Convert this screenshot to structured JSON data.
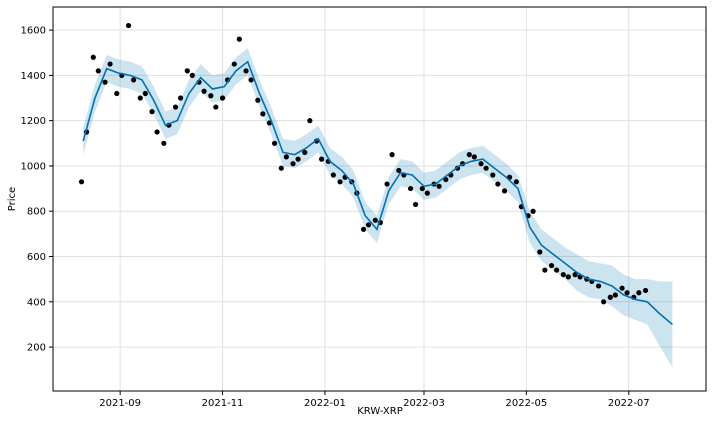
{
  "chart_data": {
    "type": "forecast",
    "xlabel": "KRW-XRP",
    "ylabel": "Price",
    "xlim": [
      "2021-07-23",
      "2022-08-16"
    ],
    "xticks": [
      "2021-09",
      "2021-11",
      "2022-01",
      "2022-03",
      "2022-05",
      "2022-07"
    ],
    "ylim": [
      6,
      1702
    ],
    "yticks": [
      200,
      400,
      600,
      800,
      1000,
      1200,
      1400,
      1600
    ],
    "grid": true,
    "actual": {
      "color": "#000000",
      "x": [
        "2021-08-09",
        "2021-08-12",
        "2021-08-16",
        "2021-08-19",
        "2021-08-23",
        "2021-08-26",
        "2021-08-30",
        "2021-09-02",
        "2021-09-06",
        "2021-09-09",
        "2021-09-13",
        "2021-09-16",
        "2021-09-20",
        "2021-09-23",
        "2021-09-27",
        "2021-09-30",
        "2021-10-04",
        "2021-10-07",
        "2021-10-11",
        "2021-10-14",
        "2021-10-18",
        "2021-10-21",
        "2021-10-25",
        "2021-10-28",
        "2021-11-01",
        "2021-11-04",
        "2021-11-08",
        "2021-11-11",
        "2021-11-15",
        "2021-11-18",
        "2021-11-22",
        "2021-11-25",
        "2021-11-29",
        "2021-12-02",
        "2021-12-06",
        "2021-12-09",
        "2021-12-13",
        "2021-12-16",
        "2021-12-20",
        "2021-12-23",
        "2021-12-27",
        "2021-12-30",
        "2022-01-03",
        "2022-01-06",
        "2022-01-10",
        "2022-01-13",
        "2022-01-17",
        "2022-01-20",
        "2022-01-24",
        "2022-01-27",
        "2022-01-31",
        "2022-02-03",
        "2022-02-07",
        "2022-02-10",
        "2022-02-14",
        "2022-02-17",
        "2022-02-21",
        "2022-02-24",
        "2022-02-28",
        "2022-03-03",
        "2022-03-07",
        "2022-03-10",
        "2022-03-14",
        "2022-03-17",
        "2022-03-21",
        "2022-03-24",
        "2022-03-28",
        "2022-03-31",
        "2022-04-04",
        "2022-04-07",
        "2022-04-11",
        "2022-04-14",
        "2022-04-18",
        "2022-04-21",
        "2022-04-25",
        "2022-04-28",
        "2022-05-02",
        "2022-05-05",
        "2022-05-09",
        "2022-05-12",
        "2022-05-16",
        "2022-05-19",
        "2022-05-23",
        "2022-05-26",
        "2022-05-30",
        "2022-06-02",
        "2022-06-06",
        "2022-06-09",
        "2022-06-13",
        "2022-06-16",
        "2022-06-20",
        "2022-06-23",
        "2022-06-27",
        "2022-06-30",
        "2022-07-04",
        "2022-07-07",
        "2022-07-11"
      ],
      "values": [
        930,
        1150,
        1480,
        1420,
        1370,
        1450,
        1320,
        1400,
        1620,
        1380,
        1300,
        1320,
        1240,
        1150,
        1100,
        1180,
        1260,
        1300,
        1420,
        1400,
        1370,
        1330,
        1310,
        1260,
        1300,
        1380,
        1450,
        1560,
        1420,
        1380,
        1290,
        1230,
        1190,
        1100,
        990,
        1040,
        1010,
        1030,
        1060,
        1200,
        1110,
        1030,
        1020,
        960,
        930,
        950,
        930,
        880,
        720,
        740,
        760,
        750,
        920,
        1050,
        980,
        960,
        900,
        830,
        900,
        880,
        920,
        910,
        940,
        960,
        990,
        1010,
        1050,
        1040,
        1010,
        990,
        960,
        920,
        890,
        950,
        930,
        820,
        780,
        800,
        620,
        540,
        560,
        540,
        520,
        510,
        520,
        510,
        500,
        490,
        470,
        400,
        420,
        430,
        460,
        440,
        420,
        440,
        450
      ]
    },
    "forecast": {
      "color": "#0072B2",
      "x": [
        "2021-08-10",
        "2021-08-17",
        "2021-08-24",
        "2021-08-31",
        "2021-09-07",
        "2021-09-14",
        "2021-09-21",
        "2021-09-28",
        "2021-10-05",
        "2021-10-12",
        "2021-10-19",
        "2021-10-26",
        "2021-11-02",
        "2021-11-09",
        "2021-11-16",
        "2021-11-23",
        "2021-11-30",
        "2021-12-07",
        "2021-12-14",
        "2021-12-21",
        "2021-12-28",
        "2022-01-04",
        "2022-01-11",
        "2022-01-18",
        "2022-01-25",
        "2022-02-01",
        "2022-02-08",
        "2022-02-15",
        "2022-02-22",
        "2022-03-01",
        "2022-03-08",
        "2022-03-15",
        "2022-03-22",
        "2022-03-29",
        "2022-04-05",
        "2022-04-12",
        "2022-04-19",
        "2022-04-26",
        "2022-05-03",
        "2022-05-10",
        "2022-05-17",
        "2022-05-24",
        "2022-05-31",
        "2022-06-07",
        "2022-06-14",
        "2022-06-21",
        "2022-06-28",
        "2022-07-05",
        "2022-07-12",
        "2022-07-19",
        "2022-07-27"
      ],
      "values": [
        1110,
        1300,
        1430,
        1410,
        1400,
        1380,
        1290,
        1180,
        1200,
        1320,
        1390,
        1340,
        1350,
        1420,
        1460,
        1320,
        1200,
        1060,
        1050,
        1080,
        1120,
        1020,
        980,
        920,
        780,
        720,
        890,
        970,
        960,
        910,
        920,
        960,
        1000,
        1020,
        1030,
        990,
        950,
        900,
        730,
        650,
        610,
        570,
        530,
        500,
        490,
        470,
        430,
        410,
        400,
        350,
        300
      ],
      "lower": [
        1050,
        1240,
        1370,
        1350,
        1340,
        1320,
        1230,
        1120,
        1140,
        1260,
        1330,
        1280,
        1290,
        1360,
        1400,
        1260,
        1140,
        1000,
        990,
        1020,
        1060,
        960,
        920,
        860,
        720,
        660,
        830,
        910,
        900,
        850,
        860,
        900,
        940,
        960,
        970,
        930,
        890,
        840,
        660,
        580,
        540,
        500,
        450,
        420,
        410,
        380,
        340,
        320,
        300,
        210,
        110
      ],
      "upper": [
        1170,
        1360,
        1490,
        1470,
        1460,
        1440,
        1350,
        1240,
        1260,
        1380,
        1450,
        1400,
        1410,
        1480,
        1520,
        1380,
        1260,
        1120,
        1110,
        1140,
        1180,
        1080,
        1040,
        980,
        840,
        780,
        950,
        1030,
        1020,
        970,
        980,
        1020,
        1060,
        1080,
        1090,
        1050,
        1010,
        960,
        800,
        720,
        680,
        640,
        610,
        580,
        570,
        560,
        520,
        500,
        500,
        490,
        490
      ]
    }
  }
}
